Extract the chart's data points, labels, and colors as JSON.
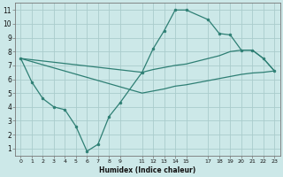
{
  "xlabel": "Humidex (Indice chaleur)",
  "bg_color": "#cce8e8",
  "grid_color": "#aacccc",
  "line_color": "#2e7f74",
  "xlim": [
    -0.5,
    23.5
  ],
  "ylim": [
    0.5,
    11.5
  ],
  "xticks": [
    0,
    1,
    2,
    3,
    4,
    5,
    6,
    7,
    8,
    9,
    11,
    12,
    13,
    14,
    15,
    17,
    18,
    19,
    20,
    21,
    22,
    23
  ],
  "yticks": [
    1,
    2,
    3,
    4,
    5,
    6,
    7,
    8,
    9,
    10,
    11
  ],
  "line1_x": [
    0,
    1,
    2,
    3,
    4,
    5,
    6,
    7,
    8,
    9,
    11,
    12,
    13,
    14,
    15,
    17,
    18,
    19,
    20,
    21,
    22,
    23
  ],
  "line1_y": [
    7.5,
    5.8,
    4.6,
    4.0,
    3.8,
    2.6,
    0.8,
    1.3,
    3.3,
    4.3,
    6.5,
    8.2,
    9.5,
    11.0,
    11.0,
    10.3,
    9.3,
    9.2,
    8.1,
    8.1,
    7.5,
    6.6
  ],
  "line2_x": [
    0,
    11,
    12,
    13,
    14,
    15,
    17,
    18,
    19,
    20,
    21,
    22,
    23
  ],
  "line2_y": [
    7.5,
    6.5,
    6.7,
    6.85,
    7.0,
    7.1,
    7.5,
    7.7,
    8.0,
    8.1,
    8.1,
    7.5,
    6.6
  ],
  "line3_x": [
    0,
    11,
    12,
    13,
    14,
    15,
    17,
    18,
    19,
    20,
    21,
    22,
    23
  ],
  "line3_y": [
    7.5,
    5.0,
    5.15,
    5.3,
    5.5,
    5.6,
    5.9,
    6.05,
    6.2,
    6.35,
    6.45,
    6.5,
    6.6
  ]
}
